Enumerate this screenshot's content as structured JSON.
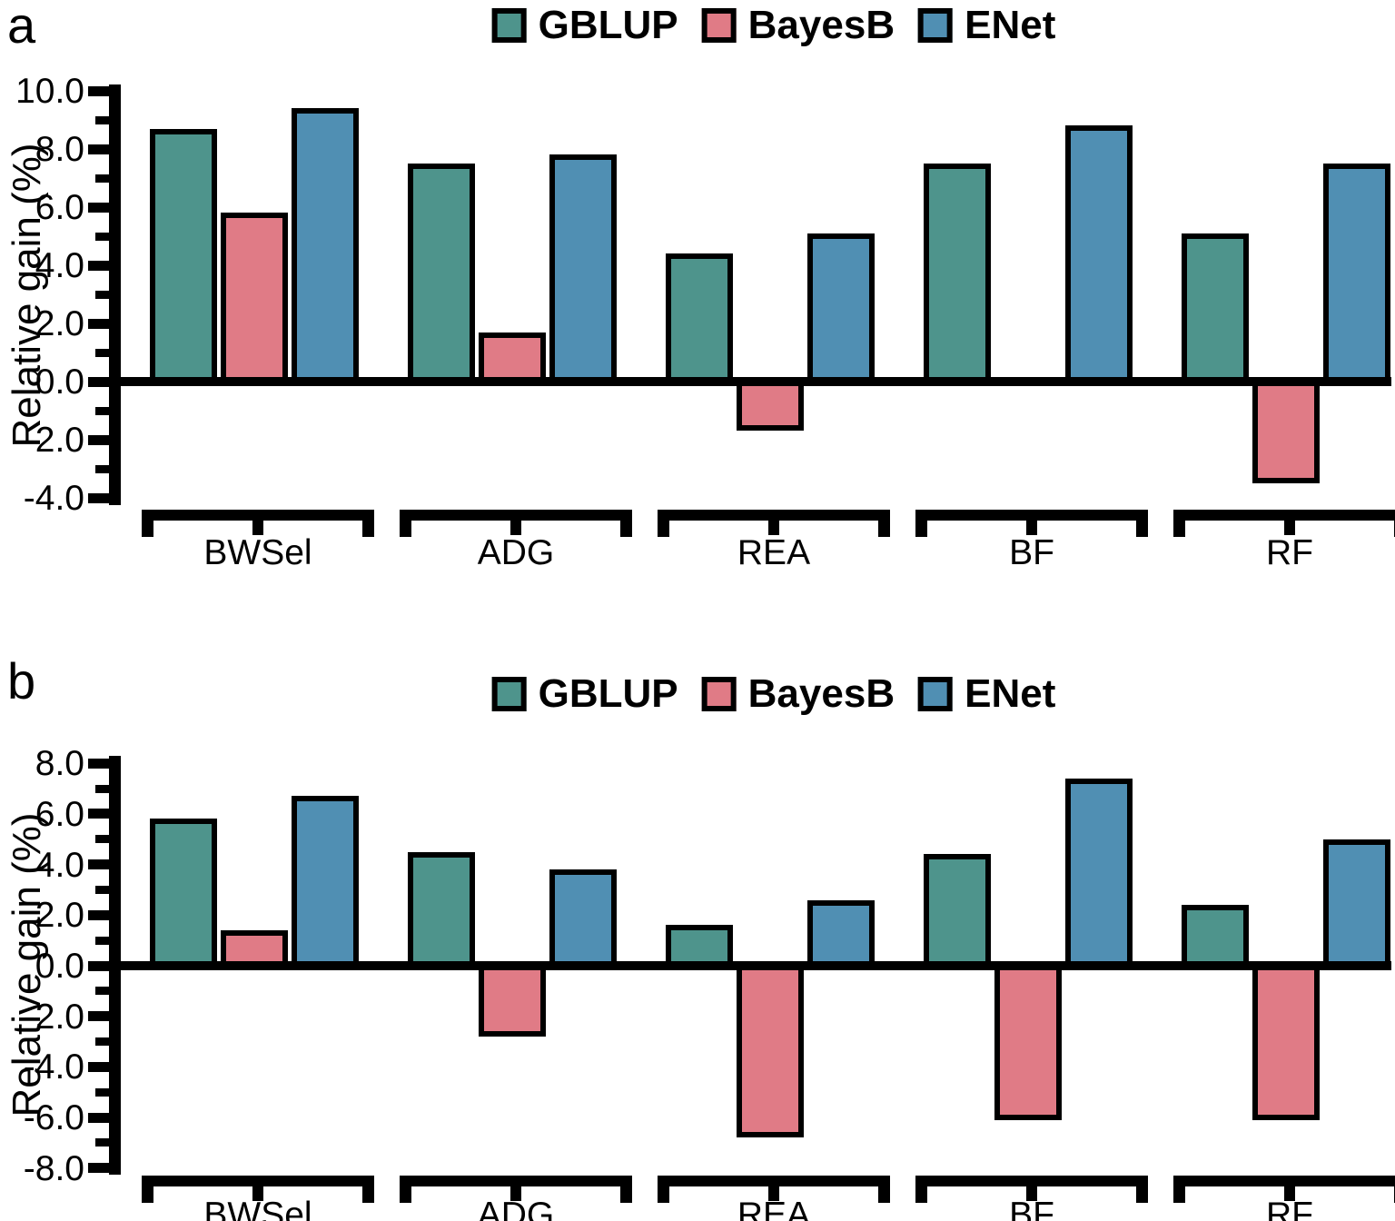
{
  "figure": {
    "background": "#FFFFFF",
    "panels": [
      {
        "id": "a",
        "letter": "a"
      },
      {
        "id": "b",
        "letter": "b"
      }
    ]
  },
  "colors": {
    "GBLUP": "#4E948C",
    "BayesB": "#E07B86",
    "ENet": "#508FB3",
    "outline": "#000000",
    "axis": "#000000"
  },
  "chart_data": [
    {
      "type": "bar",
      "panel": "a",
      "title": "",
      "ylabel": "Relative gain (%)",
      "categories": [
        "BWSel",
        "ADG",
        "REA",
        "BF",
        "RF"
      ],
      "series": [
        {
          "name": "GBLUP",
          "color": "#4E948C",
          "values": [
            8.7,
            7.5,
            4.4,
            7.5,
            5.1
          ]
        },
        {
          "name": "BayesB",
          "color": "#E07B86",
          "values": [
            5.8,
            1.7,
            -1.7,
            0.0,
            -3.5
          ]
        },
        {
          "name": "ENet",
          "color": "#508FB3",
          "values": [
            9.4,
            7.8,
            5.1,
            8.8,
            7.5
          ]
        }
      ],
      "ylim": [
        -4,
        10
      ],
      "yticks": [
        10,
        8,
        6,
        4,
        2,
        0,
        -2,
        -4
      ],
      "ytick_labels": [
        "10.0",
        "8.0",
        "6.0",
        "4.0",
        "2.0",
        "0.0",
        "-2.0",
        "-4.0"
      ],
      "minor_tick_step": 1,
      "legend_entries": [
        "GBLUP",
        "BayesB",
        "ENet"
      ],
      "legend_position": "top-center",
      "grid": false,
      "bar_outline": "#000000"
    },
    {
      "type": "bar",
      "panel": "b",
      "title": "",
      "ylabel": "Relative gain (%)",
      "categories": [
        "BWSel",
        "ADG",
        "REA",
        "BF",
        "RF"
      ],
      "series": [
        {
          "name": "GBLUP",
          "color": "#4E948C",
          "values": [
            5.8,
            4.5,
            1.6,
            4.4,
            2.4
          ]
        },
        {
          "name": "BayesB",
          "color": "#E07B86",
          "values": [
            1.4,
            -2.8,
            -6.8,
            -6.1,
            -6.1
          ]
        },
        {
          "name": "ENet",
          "color": "#508FB3",
          "values": [
            6.7,
            3.8,
            2.6,
            7.4,
            5.0
          ]
        }
      ],
      "ylim": [
        -8,
        8
      ],
      "yticks": [
        8,
        6,
        4,
        2,
        0,
        -2,
        -4,
        -6,
        -8
      ],
      "ytick_labels": [
        "8.0",
        "6.0",
        "4.0",
        "2.0",
        "0.0",
        "-2.0",
        "-4.0",
        "-6.0",
        "-8.0"
      ],
      "minor_tick_step": 1,
      "legend_entries": [
        "GBLUP",
        "BayesB",
        "ENet"
      ],
      "legend_position": "top-center",
      "grid": false,
      "bar_outline": "#000000"
    }
  ]
}
